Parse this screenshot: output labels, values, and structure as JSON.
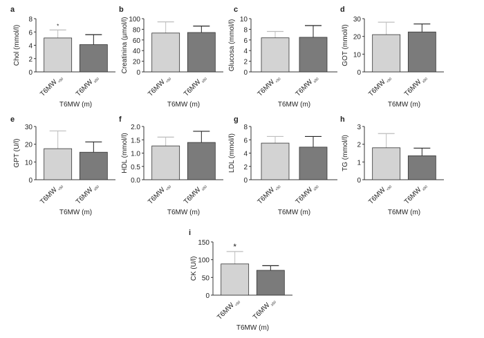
{
  "colors": {
    "group1": "#d3d3d3",
    "group2": "#7b7b7b",
    "err1": "#bdbdbd",
    "err2": "#222222",
    "axis": "#333333"
  },
  "chart_data": [
    {
      "type": "bar",
      "panel": "a",
      "ylabel": "Chol (mmol/l)",
      "xlabel": "T6MW (m)",
      "categories": [
        "T6MW",
        "T6MW"
      ],
      "subscripts": [
        "<50",
        "≥50"
      ],
      "values": [
        5.1,
        4.1
      ],
      "errors": [
        1.2,
        1.5
      ],
      "ylim": [
        0,
        8
      ],
      "yticks": [
        "0",
        "2",
        "4",
        "6",
        "8"
      ],
      "significance": [
        "*",
        ""
      ]
    },
    {
      "type": "bar",
      "panel": "b",
      "ylabel": "Creatinina (µmol/l)",
      "xlabel": "T6MW (m)",
      "categories": [
        "T6MW",
        "T6MW"
      ],
      "subscripts": [
        "<50",
        "≥50"
      ],
      "values": [
        73,
        74
      ],
      "errors": [
        21,
        12
      ],
      "ylim": [
        0,
        100
      ],
      "yticks": [
        "0",
        "20",
        "40",
        "60",
        "80",
        "100"
      ],
      "significance": [
        "",
        ""
      ]
    },
    {
      "type": "bar",
      "panel": "c",
      "ylabel": "Glucosa (mmol/l)",
      "xlabel": "T6MW (m)",
      "categories": [
        "T6MW",
        "T6MW"
      ],
      "subscripts": [
        "<50",
        "≥50"
      ],
      "values": [
        6.4,
        6.5
      ],
      "errors": [
        1.2,
        2.2
      ],
      "ylim": [
        0,
        10
      ],
      "yticks": [
        "0",
        "2",
        "4",
        "6",
        "8",
        "10"
      ],
      "significance": [
        "",
        ""
      ]
    },
    {
      "type": "bar",
      "panel": "d",
      "ylabel": "GOT (mmol/l)",
      "xlabel": "T6MW (m)",
      "categories": [
        "T6MW",
        "T6MW"
      ],
      "subscripts": [
        "<50",
        "≥50"
      ],
      "values": [
        21,
        22.5
      ],
      "errors": [
        7,
        4.5
      ],
      "ylim": [
        0,
        30
      ],
      "yticks": [
        "0",
        "10",
        "20",
        "30"
      ],
      "significance": [
        "",
        ""
      ]
    },
    {
      "type": "bar",
      "panel": "e",
      "ylabel": "GPT (U/l)",
      "xlabel": "T6MW (m)",
      "categories": [
        "T6MW",
        "T6MW"
      ],
      "subscripts": [
        "<50",
        "≥50"
      ],
      "values": [
        17.5,
        15.5
      ],
      "errors": [
        10,
        5.8
      ],
      "ylim": [
        0,
        30
      ],
      "yticks": [
        "0",
        "10",
        "20",
        "30"
      ],
      "significance": [
        "",
        ""
      ]
    },
    {
      "type": "bar",
      "panel": "f",
      "ylabel": "HDL (mmol/l)",
      "xlabel": "T6MW (m)",
      "categories": [
        "T6MW",
        "T6MW"
      ],
      "subscripts": [
        "<50",
        "≥50"
      ],
      "values": [
        1.27,
        1.4
      ],
      "errors": [
        0.33,
        0.42
      ],
      "ylim": [
        0,
        2
      ],
      "yticks": [
        "0.0",
        "0.5",
        "1.0",
        "1.5",
        "2.0"
      ],
      "significance": [
        "",
        ""
      ]
    },
    {
      "type": "bar",
      "panel": "g",
      "ylabel": "LDL (mmol/l)",
      "xlabel": "T6MW (m)",
      "categories": [
        "T6MW",
        "T6MW"
      ],
      "subscripts": [
        "<50",
        "≥50"
      ],
      "values": [
        5.5,
        4.9
      ],
      "errors": [
        1.0,
        1.6
      ],
      "ylim": [
        0,
        8
      ],
      "yticks": [
        "0",
        "2",
        "4",
        "6",
        "8"
      ],
      "significance": [
        "",
        ""
      ]
    },
    {
      "type": "bar",
      "panel": "h",
      "ylabel": "TG (mmol/l)",
      "xlabel": "T6MW (m)",
      "categories": [
        "T6MW",
        "T6MW"
      ],
      "subscripts": [
        "<50",
        "≥50"
      ],
      "values": [
        1.8,
        1.35
      ],
      "errors": [
        0.8,
        0.43
      ],
      "ylim": [
        0,
        3
      ],
      "yticks": [
        "0",
        "1",
        "2",
        "3"
      ],
      "significance": [
        "",
        ""
      ]
    },
    {
      "type": "bar",
      "panel": "i",
      "ylabel": "CK (U/l)",
      "xlabel": "T6MW (m)",
      "categories": [
        "T6MW",
        "T6MW"
      ],
      "subscripts": [
        "<50",
        "≥50"
      ],
      "values": [
        88,
        70
      ],
      "errors": [
        35,
        13
      ],
      "ylim": [
        0,
        150
      ],
      "yticks": [
        "0",
        "50",
        "100",
        "150"
      ],
      "significance": [
        "*",
        ""
      ]
    }
  ]
}
